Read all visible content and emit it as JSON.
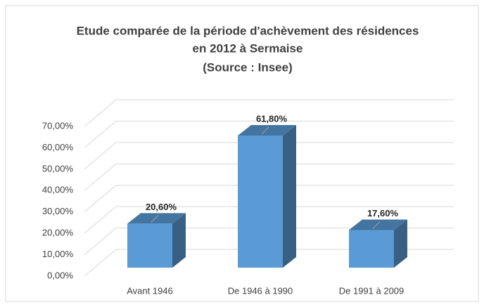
{
  "chart_data": {
    "type": "bar3d",
    "title": [
      "Etude comparée de la période d'achèvement des résidences",
      "en 2012 à Sermaise",
      "(Source : Insee)"
    ],
    "categories": [
      "Avant 1946",
      "De 1946 à 1990",
      "De 1991 à 2009"
    ],
    "values": [
      20.6,
      61.8,
      17.6
    ],
    "value_labels": [
      "20,60%",
      "61,80%",
      "17,60%"
    ],
    "color": "#5b9bd5",
    "ylim": [
      0,
      70
    ],
    "yticks": [
      {
        "value": 0,
        "label": "0,00%"
      },
      {
        "value": 10,
        "label": "10,00%"
      },
      {
        "value": 20,
        "label": "20,00%"
      },
      {
        "value": 30,
        "label": "30,00%"
      },
      {
        "value": 40,
        "label": "40,00%"
      },
      {
        "value": 50,
        "label": "50,00%"
      },
      {
        "value": 60,
        "label": "60,00%"
      },
      {
        "value": 70,
        "label": "70,00%"
      }
    ],
    "grid": true
  }
}
